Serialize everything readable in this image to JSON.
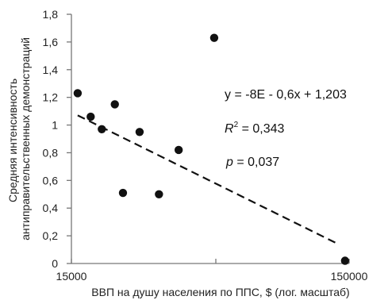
{
  "chart_data": {
    "type": "scatter",
    "xlabel": "ВВП на душу населения по ППС, $ (лог. масштаб)",
    "ylabel": [
      "Средняя интенсивность",
      "антиправительственных демонстраций"
    ],
    "x_scale": "log",
    "xlim": [
      15000,
      150000
    ],
    "ylim": [
      0,
      1.8
    ],
    "x_ticks": [
      {
        "value": 15000,
        "label": "15000"
      },
      {
        "value": 150000,
        "label": "150000"
      }
    ],
    "y_ticks": [
      {
        "value": 0,
        "label": "0"
      },
      {
        "value": 0.2,
        "label": "0,2"
      },
      {
        "value": 0.4,
        "label": "0,4"
      },
      {
        "value": 0.6,
        "label": "0,6"
      },
      {
        "value": 0.8,
        "label": "0,8"
      },
      {
        "value": 1.0,
        "label": "1"
      },
      {
        "value": 1.2,
        "label": "1,2"
      },
      {
        "value": 1.4,
        "label": "1,4"
      },
      {
        "value": 1.6,
        "label": "1,6"
      },
      {
        "value": 1.8,
        "label": "1,8"
      }
    ],
    "points": [
      {
        "x": 15800,
        "y": 1.23
      },
      {
        "x": 17600,
        "y": 1.06
      },
      {
        "x": 19300,
        "y": 0.97
      },
      {
        "x": 21500,
        "y": 1.15
      },
      {
        "x": 23000,
        "y": 0.51
      },
      {
        "x": 26400,
        "y": 0.95
      },
      {
        "x": 31000,
        "y": 0.5
      },
      {
        "x": 36500,
        "y": 0.82
      },
      {
        "x": 49000,
        "y": 1.63
      },
      {
        "x": 145000,
        "y": 0.02
      }
    ],
    "trendline": {
      "x": [
        15800,
        134000
      ],
      "y": [
        1.07,
        0.15
      ],
      "style": "dashed"
    },
    "annotations": {
      "equation": "y = -8E - 0,6x + 1,203",
      "r2_label": "R",
      "r2_sup": "2",
      "r2_value": " = 0,343",
      "p_label": "p",
      "p_value": " = 0,037"
    },
    "grid": false,
    "colors": {
      "points": "#111111",
      "axis": "#777777",
      "trendline": "#111111"
    }
  }
}
